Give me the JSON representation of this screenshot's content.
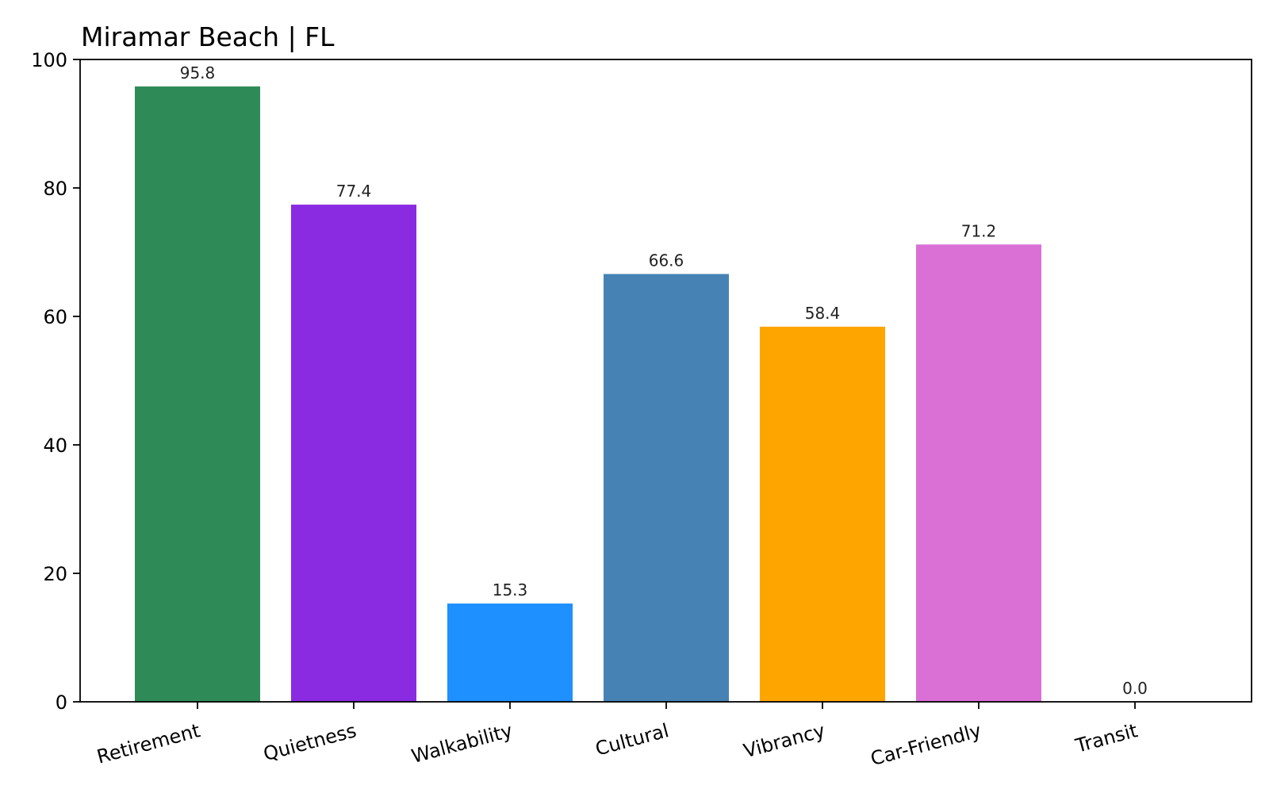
{
  "chart_data": {
    "type": "bar",
    "title": "Miramar Beach | FL",
    "xlabel": "",
    "ylabel": "",
    "categories": [
      "Retirement",
      "Quietness",
      "Walkability",
      "Cultural",
      "Vibrancy",
      "Car-Friendly",
      "Transit"
    ],
    "values": [
      95.8,
      77.4,
      15.3,
      66.6,
      58.4,
      71.2,
      0.0
    ],
    "value_labels": [
      "95.8",
      "77.4",
      "15.3",
      "66.6",
      "58.4",
      "71.2",
      "0.0"
    ],
    "colors": [
      "#2e8b57",
      "#8a2be2",
      "#1e90ff",
      "#4682b4",
      "#ffa500",
      "#da70d6",
      "#808080"
    ],
    "ylim": [
      0,
      100
    ],
    "yticks": [
      0,
      20,
      40,
      60,
      80,
      100
    ],
    "ytick_labels": [
      "0",
      "20",
      "40",
      "60",
      "80",
      "100"
    ],
    "grid": false,
    "legend": "none"
  }
}
